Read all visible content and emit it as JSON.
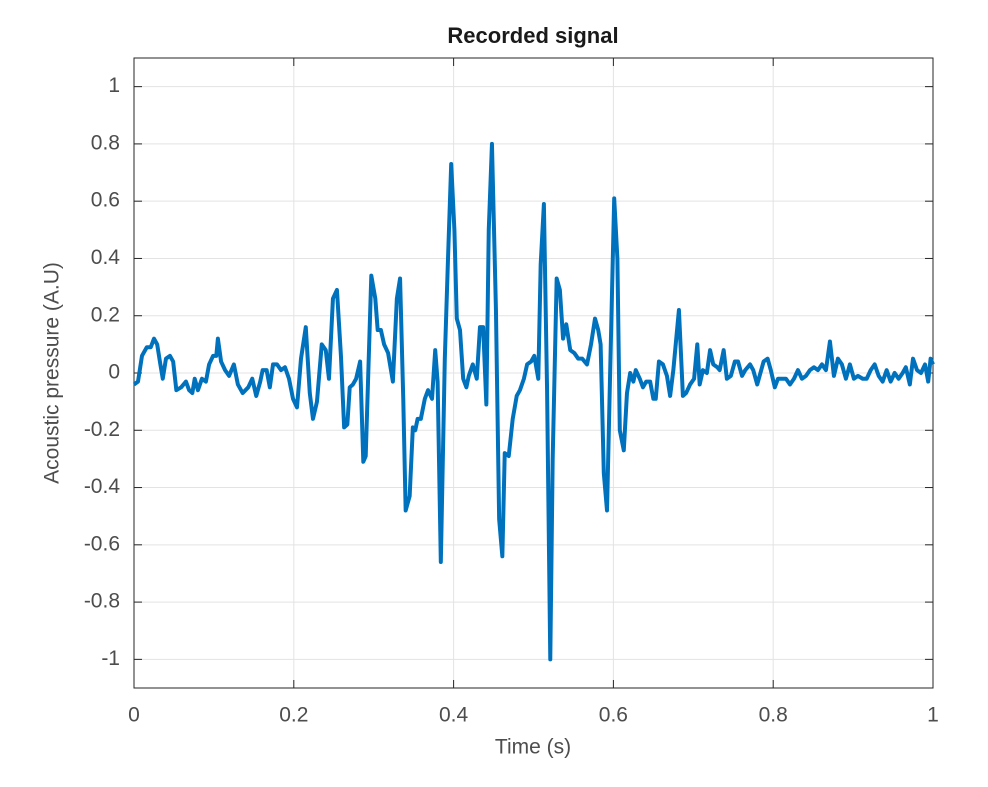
{
  "chart_data": {
    "type": "line",
    "title": "Recorded signal",
    "xlabel": "Time (s)",
    "ylabel": "Acoustic pressure (A.U)",
    "color": "#0072bd",
    "grid": true,
    "xlim": [
      0,
      1
    ],
    "ylim": [
      -1.1,
      1.1
    ],
    "xticks": [
      0,
      0.2,
      0.4,
      0.6,
      0.8,
      1
    ],
    "yticks": [
      -1,
      -0.8,
      -0.6,
      -0.4,
      -0.2,
      0,
      0.2,
      0.4,
      0.6,
      0.8,
      1
    ],
    "x": [
      0,
      0.005,
      0.01,
      0.016,
      0.021,
      0.025,
      0.029,
      0.033,
      0.036,
      0.04,
      0.045,
      0.049,
      0.053,
      0.059,
      0.065,
      0.069,
      0.073,
      0.076,
      0.08,
      0.085,
      0.09,
      0.094,
      0.099,
      0.103,
      0.105,
      0.109,
      0.114,
      0.119,
      0.125,
      0.13,
      0.136,
      0.143,
      0.148,
      0.153,
      0.158,
      0.161,
      0.166,
      0.17,
      0.174,
      0.179,
      0.184,
      0.189,
      0.194,
      0.199,
      0.204,
      0.209,
      0.215,
      0.22,
      0.224,
      0.229,
      0.235,
      0.24,
      0.244,
      0.249,
      0.254,
      0.259,
      0.263,
      0.267,
      0.27,
      0.274,
      0.278,
      0.283,
      0.287,
      0.29,
      0.293,
      0.297,
      0.302,
      0.305,
      0.309,
      0.313,
      0.318,
      0.324,
      0.329,
      0.333,
      0.337,
      0.34,
      0.345,
      0.349,
      0.352,
      0.355,
      0.359,
      0.364,
      0.368,
      0.373,
      0.377,
      0.38,
      0.384,
      0.389,
      0.393,
      0.397,
      0.401,
      0.404,
      0.408,
      0.412,
      0.416,
      0.419,
      0.424,
      0.429,
      0.433,
      0.437,
      0.441,
      0.444,
      0.448,
      0.453,
      0.457,
      0.461,
      0.464,
      0.469,
      0.474,
      0.479,
      0.483,
      0.488,
      0.492,
      0.497,
      0.501,
      0.506,
      0.509,
      0.513,
      0.517,
      0.521,
      0.524,
      0.529,
      0.533,
      0.537,
      0.541,
      0.546,
      0.551,
      0.556,
      0.561,
      0.567,
      0.572,
      0.577,
      0.581,
      0.584,
      0.588,
      0.592,
      0.596,
      0.601,
      0.605,
      0.608,
      0.613,
      0.617,
      0.621,
      0.625,
      0.628,
      0.633,
      0.637,
      0.641,
      0.646,
      0.65,
      0.653,
      0.657,
      0.662,
      0.667,
      0.671,
      0.675,
      0.678,
      0.682,
      0.687,
      0.691,
      0.696,
      0.701,
      0.705,
      0.708,
      0.712,
      0.717,
      0.721,
      0.725,
      0.73,
      0.733,
      0.738,
      0.742,
      0.747,
      0.752,
      0.756,
      0.761,
      0.765,
      0.771,
      0.775,
      0.78,
      0.783,
      0.788,
      0.793,
      0.797,
      0.802,
      0.806,
      0.811,
      0.816,
      0.821,
      0.826,
      0.831,
      0.836,
      0.841,
      0.846,
      0.851,
      0.856,
      0.861,
      0.866,
      0.871,
      0.876,
      0.881,
      0.886,
      0.891,
      0.896,
      0.901,
      0.906,
      0.912,
      0.917,
      0.922,
      0.927,
      0.932,
      0.937,
      0.942,
      0.947,
      0.952,
      0.957,
      0.962,
      0.966,
      0.971,
      0.975,
      0.98,
      0.985,
      0.99,
      0.994,
      0.997,
      1.0
    ],
    "values": [
      -0.04,
      -0.03,
      0.06,
      0.09,
      0.09,
      0.12,
      0.1,
      0.03,
      -0.02,
      0.05,
      0.06,
      0.04,
      -0.06,
      -0.05,
      -0.03,
      -0.06,
      -0.07,
      -0.02,
      -0.06,
      -0.02,
      -0.03,
      0.03,
      0.06,
      0.06,
      0.12,
      0.04,
      0.01,
      -0.01,
      0.03,
      -0.04,
      -0.07,
      -0.05,
      -0.02,
      -0.08,
      -0.03,
      0.01,
      0.01,
      -0.05,
      0.03,
      0.03,
      0.01,
      0.02,
      -0.02,
      -0.09,
      -0.12,
      0.05,
      0.16,
      -0.07,
      -0.16,
      -0.1,
      0.1,
      0.08,
      -0.02,
      0.26,
      0.29,
      0.06,
      -0.19,
      -0.18,
      -0.05,
      -0.04,
      -0.02,
      0.04,
      -0.31,
      -0.29,
      -0.02,
      0.34,
      0.26,
      0.15,
      0.15,
      0.1,
      0.07,
      -0.03,
      0.26,
      0.33,
      -0.09,
      -0.48,
      -0.43,
      -0.19,
      -0.2,
      -0.16,
      -0.16,
      -0.09,
      -0.06,
      -0.09,
      0.08,
      -0.03,
      -0.66,
      0.05,
      0.4,
      0.73,
      0.5,
      0.19,
      0.15,
      -0.02,
      -0.05,
      -0.01,
      0.03,
      -0.02,
      0.16,
      0.16,
      -0.11,
      0.5,
      0.8,
      0.22,
      -0.51,
      -0.64,
      -0.28,
      -0.29,
      -0.16,
      -0.08,
      -0.06,
      -0.02,
      0.03,
      0.04,
      0.06,
      -0.02,
      0.38,
      0.59,
      -0.06,
      -1.0,
      -0.3,
      0.33,
      0.29,
      0.12,
      0.17,
      0.08,
      0.07,
      0.05,
      0.05,
      0.03,
      0.1,
      0.19,
      0.15,
      0.1,
      -0.35,
      -0.48,
      0.01,
      0.61,
      0.4,
      -0.2,
      -0.27,
      -0.07,
      0,
      -0.03,
      0.01,
      -0.02,
      -0.05,
      -0.03,
      -0.03,
      -0.09,
      -0.09,
      0.04,
      0.03,
      -0.01,
      -0.08,
      0.01,
      0.1,
      0.22,
      -0.08,
      -0.07,
      -0.04,
      -0.02,
      0.1,
      -0.04,
      0.01,
      0,
      0.08,
      0.03,
      0.02,
      0.01,
      0.08,
      -0.02,
      -0.01,
      0.04,
      0.04,
      -0.01,
      0.01,
      0.03,
      0.01,
      -0.04,
      -0.01,
      0.04,
      0.05,
      0.01,
      -0.05,
      -0.02,
      -0.02,
      -0.02,
      -0.04,
      -0.02,
      0.01,
      -0.02,
      -0.01,
      0.01,
      0.02,
      0.01,
      0.03,
      0.01,
      0.11,
      -0.01,
      0.05,
      0.03,
      -0.02,
      0.03,
      -0.02,
      -0.01,
      -0.02,
      -0.02,
      0.01,
      0.03,
      -0.01,
      -0.03,
      0.01,
      -0.03,
      0,
      -0.02,
      0,
      0.02,
      -0.04,
      0.05,
      0.01,
      0,
      0.03,
      -0.03,
      0.05,
      0.03
    ]
  }
}
